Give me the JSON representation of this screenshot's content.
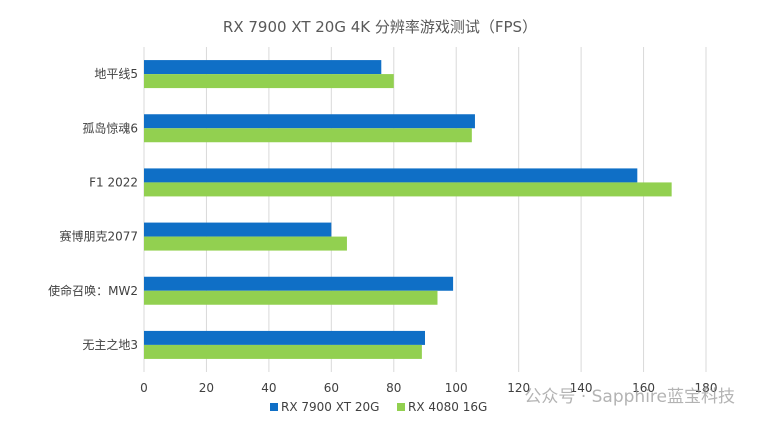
{
  "chart_data": {
    "type": "bar",
    "orientation": "horizontal",
    "title": "RX 7900 XT 20G 4K 分辨率游戏测试（FPS）",
    "categories": [
      "地平线5",
      "孤岛惊魂6",
      "F1 2022",
      "赛博朋克2077",
      "使命召唤：MW2",
      "无主之地3"
    ],
    "series": [
      {
        "name": "RX 7900 XT 20G",
        "color": "#0f6fc6",
        "values": [
          76,
          106,
          158,
          60,
          99,
          90
        ]
      },
      {
        "name": "RX 4080 16G",
        "color": "#92d050",
        "values": [
          80,
          105,
          169,
          65,
          94,
          89
        ]
      }
    ],
    "xlim": [
      0,
      180
    ],
    "xticks": [
      0,
      20,
      40,
      60,
      80,
      100,
      120,
      140,
      160,
      180
    ],
    "grid": true,
    "legend_position": "bottom"
  },
  "watermark": "公众号 · Sapphire蓝宝科技"
}
